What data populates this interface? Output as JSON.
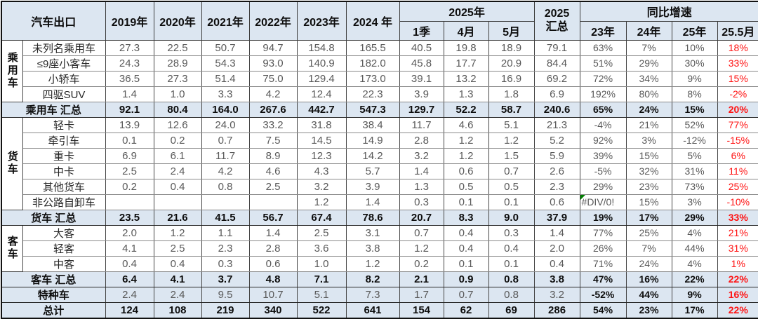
{
  "chart_data": {
    "type": "table",
    "title": "汽车出口",
    "year_columns": [
      "2019年",
      "2020年",
      "2021年",
      "2022年",
      "2023年",
      "2024 年"
    ],
    "h2025": {
      "label": "2025年",
      "subs": [
        "1季",
        "4月",
        "5月"
      ]
    },
    "total2025": {
      "line1": "2025",
      "line2": "汇总"
    },
    "yoy": {
      "label": "同比增速",
      "subs": [
        "23年",
        "24年",
        "25年",
        "25.5月"
      ]
    },
    "rows": [
      {
        "kind": "detail",
        "group": {
          "label": "乘用车",
          "span": 4
        },
        "label": "未列名乘用车",
        "values": [
          "27.3",
          "22.5",
          "50.7",
          "94.7",
          "154.8",
          "165.5",
          "40.5",
          "19.8",
          "18.9",
          "79.1",
          "63%",
          "7%",
          "10%",
          "18%"
        ]
      },
      {
        "kind": "detail",
        "label": "≤9座小客车",
        "values": [
          "24.3",
          "28.9",
          "54.3",
          "93.0",
          "140.9",
          "182.0",
          "45.8",
          "17.7",
          "20.9",
          "84.4",
          "51%",
          "29%",
          "30%",
          "33%"
        ]
      },
      {
        "kind": "detail",
        "label": "小轿车",
        "values": [
          "36.5",
          "27.3",
          "51.4",
          "75.0",
          "129.4",
          "173.0",
          "39.1",
          "13.2",
          "16.9",
          "69.2",
          "72%",
          "34%",
          "9%",
          "15%"
        ]
      },
      {
        "kind": "detail",
        "label": "四驱SUV",
        "values": [
          "1.4",
          "1.0",
          "3.3",
          "4.2",
          "12.4",
          "22.3",
          "3.9",
          "1.3",
          "1.8",
          "6.9",
          "192%",
          "80%",
          "8%",
          "-2%"
        ]
      },
      {
        "kind": "summary",
        "label": "乘用车 汇总",
        "values": [
          "92.1",
          "80.4",
          "164.0",
          "267.6",
          "442.7",
          "547.3",
          "129.7",
          "52.2",
          "58.7",
          "240.6",
          "65%",
          "24%",
          "15%",
          "20%"
        ]
      },
      {
        "kind": "detail",
        "group": {
          "label": "货车",
          "span": 6
        },
        "label": "轻卡",
        "values": [
          "13.9",
          "12.6",
          "24.0",
          "33.2",
          "31.8",
          "38.4",
          "11.7",
          "4.6",
          "5.1",
          "21.3",
          "-4%",
          "21%",
          "52%",
          "77%"
        ]
      },
      {
        "kind": "detail",
        "label": "牵引车",
        "values": [
          "0.1",
          "0.2",
          "0.7",
          "7.5",
          "14.5",
          "14.9",
          "2.8",
          "1.2",
          "1.2",
          "5.2",
          "92%",
          "3%",
          "-12%",
          "-15%"
        ]
      },
      {
        "kind": "detail",
        "label": "重卡",
        "values": [
          "6.9",
          "6.1",
          "11.7",
          "8.9",
          "12.3",
          "14.2",
          "3.2",
          "1.2",
          "1.5",
          "5.9",
          "39%",
          "15%",
          "5%",
          "6%"
        ]
      },
      {
        "kind": "detail",
        "label": "中卡",
        "values": [
          "2.5",
          "2.4",
          "4.2",
          "4.6",
          "4.3",
          "5.7",
          "1.4",
          "0.6",
          "0.7",
          "2.6",
          "-5%",
          "32%",
          "31%",
          "11%"
        ]
      },
      {
        "kind": "detail",
        "label": "其他货车",
        "values": [
          "0.2",
          "0.4",
          "0.8",
          "2.5",
          "3.2",
          "3.9",
          "1.3",
          "0.5",
          "0.5",
          "2.3",
          "29%",
          "23%",
          "73%",
          "25%"
        ]
      },
      {
        "kind": "detail",
        "label": "非公路自卸车",
        "values": [
          "",
          "",
          "",
          "",
          "1.2",
          "1.4",
          "0.3",
          "0.1",
          "0.1",
          "0.6",
          "#DIV/0!",
          "15%",
          "3%",
          "-10%"
        ]
      },
      {
        "kind": "summary",
        "label": "货车 汇总",
        "values": [
          "23.5",
          "21.6",
          "41.5",
          "56.7",
          "67.4",
          "78.6",
          "20.7",
          "8.3",
          "9.0",
          "37.9",
          "19%",
          "17%",
          "29%",
          "33%"
        ]
      },
      {
        "kind": "detail",
        "group": {
          "label": "客车",
          "span": 3
        },
        "label": "大客",
        "values": [
          "2.0",
          "1.2",
          "1.1",
          "1.4",
          "2.5",
          "3.1",
          "0.7",
          "0.4",
          "0.3",
          "1.4",
          "77%",
          "25%",
          "4%",
          "21%"
        ]
      },
      {
        "kind": "detail",
        "label": "轻客",
        "values": [
          "4.1",
          "2.5",
          "2.3",
          "2.8",
          "3.6",
          "3.8",
          "1.2",
          "0.4",
          "0.4",
          "2.0",
          "26%",
          "7%",
          "44%",
          "31%"
        ]
      },
      {
        "kind": "detail",
        "label": "中客",
        "values": [
          "0.4",
          "0.4",
          "0.3",
          "0.6",
          "1.0",
          "1.2",
          "0.2",
          "0.1",
          "0.1",
          "0.4",
          "71%",
          "24%",
          "4%",
          "1%"
        ]
      },
      {
        "kind": "summary",
        "label": "客车 汇总",
        "values": [
          "6.4",
          "4.1",
          "3.7",
          "4.8",
          "7.1",
          "8.2",
          "2.1",
          "0.9",
          "0.8",
          "3.8",
          "47%",
          "16%",
          "22%",
          "22%"
        ]
      },
      {
        "kind": "special",
        "label": "特种车",
        "values": [
          "2.4",
          "2.4",
          "9.5",
          "10.7",
          "5.1",
          "7.3",
          "1.7",
          "0.7",
          "0.8",
          "3.2",
          "-52%",
          "44%",
          "9%",
          "16%"
        ]
      },
      {
        "kind": "grand",
        "label": "总计",
        "values": [
          "124",
          "108",
          "219",
          "340",
          "522",
          "641",
          "154",
          "62",
          "69",
          "286",
          "54%",
          "23%",
          "17%",
          "22%"
        ]
      }
    ],
    "error_cell_value": "#DIV/0!"
  },
  "colors": {
    "header_bg": "#dce6f1",
    "summary_row_bg": "#dce6f1",
    "detail_row_bg": "#ffffff",
    "detail_text": "#595959",
    "strong_text": "#0d0d0d",
    "highlight_red": "#ff1212",
    "error_indicator_green": "#008000",
    "outer_border": "#121212"
  }
}
